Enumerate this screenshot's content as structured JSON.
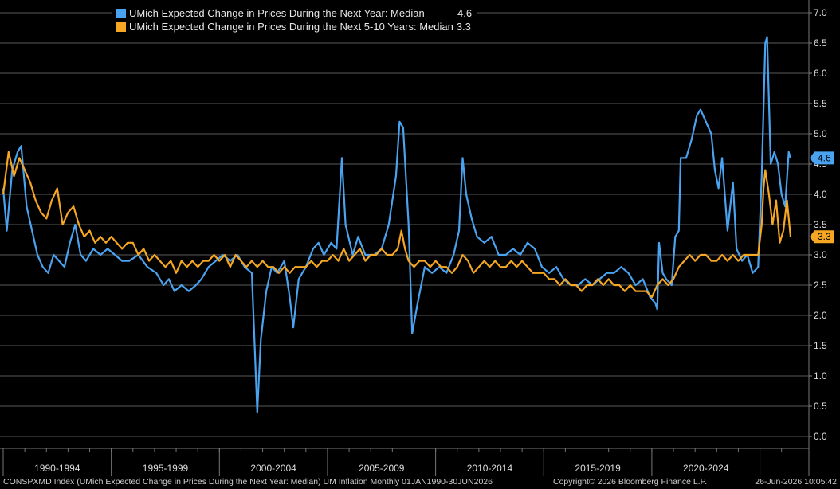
{
  "chart_data": {
    "type": "line",
    "x_unit": "month",
    "x_range": [
      "1990-01",
      "2026-06"
    ],
    "ylim": [
      0.0,
      7.0
    ],
    "y_ticks": [
      "0.0",
      "0.5",
      "1.0",
      "1.5",
      "2.0",
      "2.5",
      "3.0",
      "3.5",
      "4.0",
      "4.5",
      "5.0",
      "5.5",
      "6.0",
      "6.5",
      "7.0"
    ],
    "x_tick_labels": [
      "1990-1994",
      "1995-1999",
      "2000-2004",
      "2005-2009",
      "2010-2014",
      "2015-2019",
      "2020-2024"
    ],
    "grid": true,
    "legend_position": "top-left",
    "series": [
      {
        "name": "UMich Expected Change in Prices During the Next Year: Median",
        "last_value": "4.6",
        "color": "#4aa3f0",
        "points": [
          [
            "1990-01",
            4.1
          ],
          [
            "1990-03",
            3.4
          ],
          [
            "1990-06",
            4.4
          ],
          [
            "1990-09",
            4.7
          ],
          [
            "1990-11",
            4.8
          ],
          [
            "1991-02",
            3.8
          ],
          [
            "1991-05",
            3.4
          ],
          [
            "1991-08",
            3.0
          ],
          [
            "1991-11",
            2.8
          ],
          [
            "1992-02",
            2.7
          ],
          [
            "1992-05",
            3.0
          ],
          [
            "1992-08",
            2.9
          ],
          [
            "1992-11",
            2.8
          ],
          [
            "1993-02",
            3.2
          ],
          [
            "1993-05",
            3.5
          ],
          [
            "1993-08",
            3.0
          ],
          [
            "1993-11",
            2.9
          ],
          [
            "1994-03",
            3.1
          ],
          [
            "1994-07",
            3.0
          ],
          [
            "1994-11",
            3.1
          ],
          [
            "1995-03",
            3.0
          ],
          [
            "1995-07",
            2.9
          ],
          [
            "1995-11",
            2.9
          ],
          [
            "1996-04",
            3.0
          ],
          [
            "1996-09",
            2.8
          ],
          [
            "1997-02",
            2.7
          ],
          [
            "1997-06",
            2.5
          ],
          [
            "1997-09",
            2.6
          ],
          [
            "1997-12",
            2.4
          ],
          [
            "1998-04",
            2.5
          ],
          [
            "1998-08",
            2.4
          ],
          [
            "1998-12",
            2.5
          ],
          [
            "1999-03",
            2.6
          ],
          [
            "1999-07",
            2.8
          ],
          [
            "1999-11",
            2.9
          ],
          [
            "2000-03",
            3.0
          ],
          [
            "2000-07",
            2.9
          ],
          [
            "2000-11",
            3.0
          ],
          [
            "2001-03",
            2.8
          ],
          [
            "2001-07",
            2.7
          ],
          [
            "2001-10",
            0.4
          ],
          [
            "2001-12",
            1.6
          ],
          [
            "2002-03",
            2.4
          ],
          [
            "2002-06",
            2.8
          ],
          [
            "2002-09",
            2.7
          ],
          [
            "2003-01",
            2.9
          ],
          [
            "2003-04",
            2.3
          ],
          [
            "2003-06",
            1.8
          ],
          [
            "2003-09",
            2.6
          ],
          [
            "2004-01",
            2.8
          ],
          [
            "2004-05",
            3.1
          ],
          [
            "2004-08",
            3.2
          ],
          [
            "2004-11",
            3.0
          ],
          [
            "2005-03",
            3.2
          ],
          [
            "2005-06",
            3.1
          ],
          [
            "2005-09",
            4.6
          ],
          [
            "2005-11",
            3.5
          ],
          [
            "2006-03",
            3.0
          ],
          [
            "2006-06",
            3.3
          ],
          [
            "2006-10",
            3.0
          ],
          [
            "2007-03",
            3.0
          ],
          [
            "2007-07",
            3.1
          ],
          [
            "2007-11",
            3.5
          ],
          [
            "2008-03",
            4.3
          ],
          [
            "2008-05",
            5.2
          ],
          [
            "2008-07",
            5.1
          ],
          [
            "2008-10",
            3.5
          ],
          [
            "2008-12",
            1.7
          ],
          [
            "2009-03",
            2.2
          ],
          [
            "2009-07",
            2.8
          ],
          [
            "2009-11",
            2.7
          ],
          [
            "2010-03",
            2.8
          ],
          [
            "2010-07",
            2.7
          ],
          [
            "2010-11",
            3.0
          ],
          [
            "2011-02",
            3.4
          ],
          [
            "2011-04",
            4.6
          ],
          [
            "2011-06",
            4.0
          ],
          [
            "2011-09",
            3.6
          ],
          [
            "2011-12",
            3.3
          ],
          [
            "2012-04",
            3.2
          ],
          [
            "2012-08",
            3.3
          ],
          [
            "2012-12",
            3.0
          ],
          [
            "2013-04",
            3.0
          ],
          [
            "2013-08",
            3.1
          ],
          [
            "2013-12",
            3.0
          ],
          [
            "2014-04",
            3.2
          ],
          [
            "2014-08",
            3.1
          ],
          [
            "2014-12",
            2.8
          ],
          [
            "2015-04",
            2.7
          ],
          [
            "2015-08",
            2.8
          ],
          [
            "2015-12",
            2.6
          ],
          [
            "2016-04",
            2.5
          ],
          [
            "2016-08",
            2.5
          ],
          [
            "2016-12",
            2.6
          ],
          [
            "2017-04",
            2.5
          ],
          [
            "2017-08",
            2.6
          ],
          [
            "2017-12",
            2.7
          ],
          [
            "2018-04",
            2.7
          ],
          [
            "2018-08",
            2.8
          ],
          [
            "2018-12",
            2.7
          ],
          [
            "2019-04",
            2.5
          ],
          [
            "2019-08",
            2.6
          ],
          [
            "2019-12",
            2.3
          ],
          [
            "2020-03",
            2.2
          ],
          [
            "2020-04",
            2.1
          ],
          [
            "2020-05",
            3.2
          ],
          [
            "2020-07",
            2.7
          ],
          [
            "2020-09",
            2.6
          ],
          [
            "2020-12",
            2.5
          ],
          [
            "2021-02",
            3.3
          ],
          [
            "2021-04",
            3.4
          ],
          [
            "2021-05",
            4.6
          ],
          [
            "2021-08",
            4.6
          ],
          [
            "2021-11",
            4.9
          ],
          [
            "2022-02",
            5.3
          ],
          [
            "2022-04",
            5.4
          ],
          [
            "2022-07",
            5.2
          ],
          [
            "2022-10",
            5.0
          ],
          [
            "2022-12",
            4.4
          ],
          [
            "2023-02",
            4.1
          ],
          [
            "2023-04",
            4.6
          ],
          [
            "2023-07",
            3.4
          ],
          [
            "2023-10",
            4.2
          ],
          [
            "2023-12",
            3.1
          ],
          [
            "2024-03",
            2.9
          ],
          [
            "2024-06",
            3.0
          ],
          [
            "2024-09",
            2.7
          ],
          [
            "2024-12",
            2.8
          ],
          [
            "2025-02",
            4.3
          ],
          [
            "2025-04",
            6.5
          ],
          [
            "2025-05",
            6.6
          ],
          [
            "2025-07",
            4.5
          ],
          [
            "2025-09",
            4.7
          ],
          [
            "2025-11",
            4.5
          ],
          [
            "2026-01",
            4.0
          ],
          [
            "2026-03",
            3.8
          ],
          [
            "2026-05",
            4.7
          ],
          [
            "2026-06",
            4.6
          ]
        ]
      },
      {
        "name": "UMich Expected Change in Prices During the Next 5-10 Years: Median",
        "last_value": "3.3",
        "color": "#f5a623",
        "points": [
          [
            "1990-01",
            4.0
          ],
          [
            "1990-04",
            4.7
          ],
          [
            "1990-07",
            4.3
          ],
          [
            "1990-10",
            4.6
          ],
          [
            "1991-01",
            4.4
          ],
          [
            "1991-04",
            4.2
          ],
          [
            "1991-07",
            3.9
          ],
          [
            "1991-10",
            3.7
          ],
          [
            "1992-01",
            3.6
          ],
          [
            "1992-04",
            3.9
          ],
          [
            "1992-07",
            4.1
          ],
          [
            "1992-10",
            3.5
          ],
          [
            "1993-01",
            3.7
          ],
          [
            "1993-04",
            3.8
          ],
          [
            "1993-07",
            3.5
          ],
          [
            "1993-10",
            3.3
          ],
          [
            "1994-01",
            3.4
          ],
          [
            "1994-04",
            3.2
          ],
          [
            "1994-07",
            3.3
          ],
          [
            "1994-10",
            3.2
          ],
          [
            "1995-01",
            3.3
          ],
          [
            "1995-04",
            3.2
          ],
          [
            "1995-07",
            3.1
          ],
          [
            "1995-10",
            3.2
          ],
          [
            "1996-01",
            3.2
          ],
          [
            "1996-04",
            3.0
          ],
          [
            "1996-07",
            3.1
          ],
          [
            "1996-10",
            2.9
          ],
          [
            "1997-01",
            3.0
          ],
          [
            "1997-04",
            2.9
          ],
          [
            "1997-07",
            2.8
          ],
          [
            "1997-10",
            2.9
          ],
          [
            "1998-01",
            2.7
          ],
          [
            "1998-04",
            2.9
          ],
          [
            "1998-07",
            2.8
          ],
          [
            "1998-10",
            2.9
          ],
          [
            "1999-01",
            2.8
          ],
          [
            "1999-04",
            2.9
          ],
          [
            "1999-07",
            2.9
          ],
          [
            "1999-10",
            3.0
          ],
          [
            "2000-01",
            2.9
          ],
          [
            "2000-04",
            3.0
          ],
          [
            "2000-07",
            2.8
          ],
          [
            "2000-10",
            3.0
          ],
          [
            "2001-01",
            2.9
          ],
          [
            "2001-04",
            2.8
          ],
          [
            "2001-07",
            2.9
          ],
          [
            "2001-10",
            2.8
          ],
          [
            "2002-01",
            2.9
          ],
          [
            "2002-04",
            2.8
          ],
          [
            "2002-07",
            2.8
          ],
          [
            "2002-10",
            2.7
          ],
          [
            "2003-01",
            2.8
          ],
          [
            "2003-04",
            2.7
          ],
          [
            "2003-07",
            2.8
          ],
          [
            "2003-10",
            2.8
          ],
          [
            "2004-01",
            2.8
          ],
          [
            "2004-04",
            2.9
          ],
          [
            "2004-07",
            2.8
          ],
          [
            "2004-10",
            2.9
          ],
          [
            "2005-01",
            2.9
          ],
          [
            "2005-04",
            3.0
          ],
          [
            "2005-07",
            2.9
          ],
          [
            "2005-10",
            3.1
          ],
          [
            "2006-01",
            2.9
          ],
          [
            "2006-04",
            3.0
          ],
          [
            "2006-07",
            3.1
          ],
          [
            "2006-10",
            2.9
          ],
          [
            "2007-01",
            3.0
          ],
          [
            "2007-04",
            3.0
          ],
          [
            "2007-07",
            3.1
          ],
          [
            "2007-10",
            3.0
          ],
          [
            "2008-01",
            3.0
          ],
          [
            "2008-04",
            3.1
          ],
          [
            "2008-06",
            3.4
          ],
          [
            "2008-08",
            3.1
          ],
          [
            "2008-10",
            2.9
          ],
          [
            "2009-01",
            2.8
          ],
          [
            "2009-04",
            2.9
          ],
          [
            "2009-07",
            2.9
          ],
          [
            "2009-10",
            2.8
          ],
          [
            "2010-01",
            2.9
          ],
          [
            "2010-04",
            2.8
          ],
          [
            "2010-07",
            2.8
          ],
          [
            "2010-10",
            2.7
          ],
          [
            "2011-01",
            2.8
          ],
          [
            "2011-04",
            3.0
          ],
          [
            "2011-07",
            2.9
          ],
          [
            "2011-10",
            2.7
          ],
          [
            "2012-01",
            2.8
          ],
          [
            "2012-04",
            2.9
          ],
          [
            "2012-07",
            2.8
          ],
          [
            "2012-10",
            2.9
          ],
          [
            "2013-01",
            2.8
          ],
          [
            "2013-04",
            2.8
          ],
          [
            "2013-07",
            2.9
          ],
          [
            "2013-10",
            2.8
          ],
          [
            "2014-01",
            2.9
          ],
          [
            "2014-04",
            2.8
          ],
          [
            "2014-07",
            2.7
          ],
          [
            "2014-10",
            2.7
          ],
          [
            "2015-01",
            2.7
          ],
          [
            "2015-04",
            2.6
          ],
          [
            "2015-07",
            2.6
          ],
          [
            "2015-10",
            2.5
          ],
          [
            "2016-01",
            2.6
          ],
          [
            "2016-04",
            2.5
          ],
          [
            "2016-07",
            2.5
          ],
          [
            "2016-10",
            2.4
          ],
          [
            "2017-01",
            2.5
          ],
          [
            "2017-04",
            2.5
          ],
          [
            "2017-07",
            2.6
          ],
          [
            "2017-10",
            2.5
          ],
          [
            "2018-01",
            2.6
          ],
          [
            "2018-04",
            2.5
          ],
          [
            "2018-07",
            2.5
          ],
          [
            "2018-10",
            2.4
          ],
          [
            "2019-01",
            2.5
          ],
          [
            "2019-04",
            2.4
          ],
          [
            "2019-07",
            2.4
          ],
          [
            "2019-10",
            2.4
          ],
          [
            "2020-01",
            2.3
          ],
          [
            "2020-04",
            2.5
          ],
          [
            "2020-07",
            2.6
          ],
          [
            "2020-10",
            2.5
          ],
          [
            "2021-01",
            2.6
          ],
          [
            "2021-04",
            2.8
          ],
          [
            "2021-07",
            2.9
          ],
          [
            "2021-10",
            3.0
          ],
          [
            "2022-01",
            2.9
          ],
          [
            "2022-04",
            3.0
          ],
          [
            "2022-07",
            3.0
          ],
          [
            "2022-10",
            2.9
          ],
          [
            "2023-01",
            2.9
          ],
          [
            "2023-04",
            3.0
          ],
          [
            "2023-07",
            2.9
          ],
          [
            "2023-10",
            3.0
          ],
          [
            "2024-01",
            2.9
          ],
          [
            "2024-04",
            3.0
          ],
          [
            "2024-07",
            3.0
          ],
          [
            "2024-10",
            3.0
          ],
          [
            "2024-12",
            3.0
          ],
          [
            "2025-02",
            3.5
          ],
          [
            "2025-03",
            4.1
          ],
          [
            "2025-04",
            4.4
          ],
          [
            "2025-06",
            4.0
          ],
          [
            "2025-08",
            3.5
          ],
          [
            "2025-10",
            3.9
          ],
          [
            "2025-12",
            3.2
          ],
          [
            "2026-02",
            3.4
          ],
          [
            "2026-04",
            3.9
          ],
          [
            "2026-06",
            3.3
          ]
        ]
      }
    ]
  },
  "footer": {
    "left": "CONSPXMD Index (UMich Expected Change in Prices During the Next Year: Median) UM Inflation Monthly 01JAN1990-30JUN2026",
    "center": "Copyright© 2026 Bloomberg Finance L.P.",
    "right": "26-Jun-2026 10:05:42"
  }
}
